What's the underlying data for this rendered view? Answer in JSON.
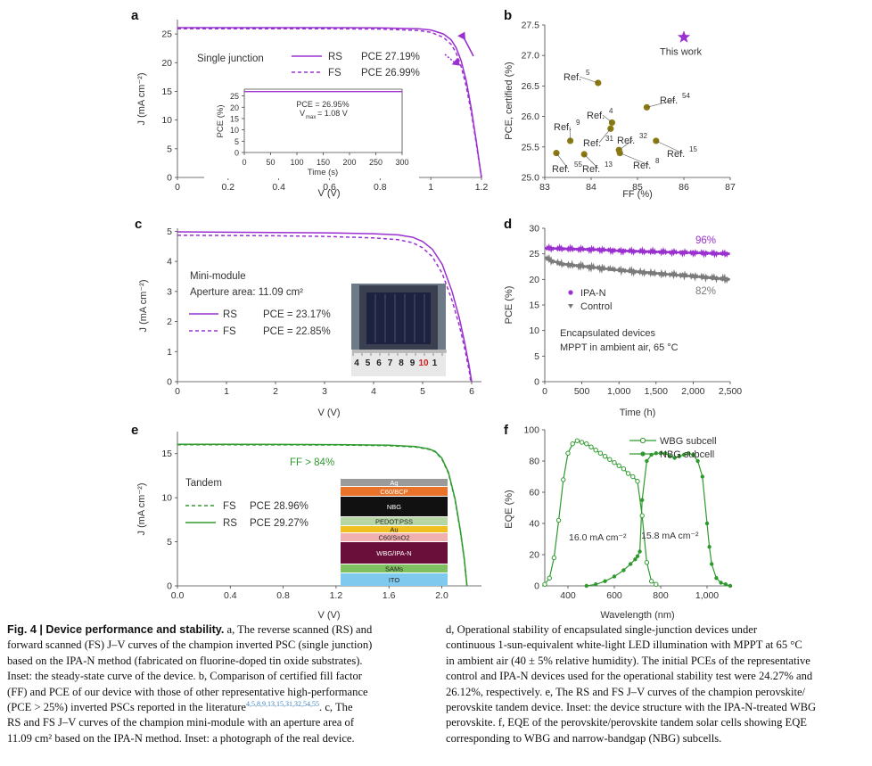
{
  "panels": {
    "a": {
      "letter": "a",
      "ylabel": "J (mA cm⁻²)",
      "xlabel": "V (V)",
      "title": "Single junction",
      "legend": [
        {
          "name": "RS",
          "pce": "PCE 27.19%"
        },
        {
          "name": "FS",
          "pce": "PCE 26.99%"
        }
      ],
      "inset": {
        "text1": "PCE = 26.95%",
        "text2": "V",
        "text2sub": "max",
        "text2b": " = 1.08 V",
        "xlabel": "Time (s)",
        "ylabel": "PCE (%)"
      }
    },
    "b": {
      "letter": "b",
      "xlabel": "FF (%)",
      "ylabel": "PCE, certified (%)"
    },
    "c": {
      "letter": "c",
      "ylabel": "J (mA cm⁻²)",
      "xlabel": "V (V)",
      "title": "Mini-module",
      "subtitle": "Aperture area: 11.09 cm²",
      "legend": [
        {
          "name": "RS",
          "pce": "PCE = 23.17%"
        },
        {
          "name": "FS",
          "pce": "PCE = 22.85%"
        }
      ],
      "ruler": [
        "4",
        "5",
        "6",
        "7",
        "8",
        "9",
        "10",
        "1"
      ]
    },
    "d": {
      "letter": "d",
      "ylabel": "PCE (%)",
      "xlabel": "Time (h)",
      "legend": [
        "IPA-N",
        "Control"
      ],
      "note1": "Encapsulated devices",
      "note2": "MPPT in ambient air, 65 °C",
      "label_top": "96%",
      "label_bottom": "82%"
    },
    "e": {
      "letter": "e",
      "ylabel": "J (mA cm⁻²)",
      "xlabel": "V (V)",
      "title": "Tandem",
      "ff": "FF > 84%",
      "legend": [
        {
          "name": "FS",
          "pce": "PCE 28.96%"
        },
        {
          "name": "RS",
          "pce": "PCE 29.27%"
        }
      ],
      "stack": [
        "Ag",
        "C60/BCP",
        "NBG",
        "PEDOT:PSS",
        "Au",
        "C60/SnO2",
        "WBG/IPA-N",
        "SAMs",
        "ITO"
      ]
    },
    "f": {
      "letter": "f",
      "ylabel": "EQE (%)",
      "xlabel": "Wavelength (nm)",
      "legend": [
        "WBG subcell",
        "NBG subcell"
      ],
      "label_left": "16.0 mA cm⁻²",
      "label_right": "15.8 mA cm⁻²"
    }
  },
  "chart_data": [
    {
      "panel": "a",
      "type": "line",
      "xlabel": "V (V)",
      "ylabel": "J (mA cm⁻²)",
      "xlim": [
        0,
        1.2
      ],
      "ylim": [
        0,
        27.5
      ],
      "xticks": [
        0,
        0.2,
        0.4,
        0.6,
        0.8,
        1.0,
        1.2
      ],
      "yticks": [
        0,
        5,
        10,
        15,
        20,
        25
      ],
      "series": [
        {
          "name": "RS",
          "x": [
            0,
            0.2,
            0.4,
            0.6,
            0.8,
            0.95,
            1.0,
            1.05,
            1.08,
            1.1,
            1.12,
            1.14,
            1.16,
            1.18,
            1.19,
            1.2
          ],
          "values": [
            26.1,
            26.1,
            26.1,
            26.1,
            26.05,
            25.9,
            25.7,
            25.0,
            24.0,
            22.6,
            20.3,
            16.8,
            12.0,
            6.2,
            3.0,
            0
          ]
        },
        {
          "name": "FS",
          "x": [
            0,
            0.2,
            0.4,
            0.6,
            0.8,
            0.95,
            1.0,
            1.05,
            1.08,
            1.1,
            1.12,
            1.14,
            1.16,
            1.18,
            1.19,
            1.2
          ],
          "values": [
            25.9,
            25.9,
            25.9,
            25.9,
            25.85,
            25.6,
            25.3,
            24.4,
            23.2,
            21.7,
            19.3,
            15.8,
            11.3,
            5.8,
            2.8,
            0
          ]
        }
      ],
      "inset": {
        "xlim": [
          0,
          300
        ],
        "ylim": [
          0,
          28
        ],
        "xticks": [
          0,
          50,
          100,
          150,
          200,
          250,
          300
        ],
        "yticks": [
          0,
          5,
          10,
          15,
          20,
          25
        ],
        "value": 26.95
      }
    },
    {
      "panel": "b",
      "type": "scatter",
      "xlabel": "FF (%)",
      "ylabel": "PCE, certified (%)",
      "xlim": [
        83,
        87
      ],
      "ylim": [
        25.0,
        27.5
      ],
      "xticks": [
        83,
        84,
        85,
        86,
        87
      ],
      "yticks": [
        25.0,
        25.5,
        26.0,
        26.5,
        27.0,
        27.5
      ],
      "points": [
        {
          "label": "This work",
          "x": 86.0,
          "y": 27.3,
          "marker": "star"
        },
        {
          "label": "Ref.",
          "sup": "5",
          "x": 84.15,
          "y": 26.55
        },
        {
          "label": "Ref.",
          "sup": "54",
          "x": 85.2,
          "y": 26.15
        },
        {
          "label": "Ref.",
          "sup": "4",
          "x": 84.45,
          "y": 25.9
        },
        {
          "label": "Ref.",
          "sup": "9",
          "x": 83.55,
          "y": 25.6
        },
        {
          "label": "Ref.",
          "sup": "31",
          "x": 84.42,
          "y": 25.8
        },
        {
          "label": "Ref.",
          "sup": "32",
          "x": 84.6,
          "y": 25.45
        },
        {
          "label": "Ref.",
          "sup": "15",
          "x": 85.4,
          "y": 25.6
        },
        {
          "label": "Ref.",
          "sup": "8",
          "x": 84.62,
          "y": 25.4
        },
        {
          "label": "Ref.",
          "sup": "55",
          "x": 83.25,
          "y": 25.4
        },
        {
          "label": "Ref.",
          "sup": "13",
          "x": 83.85,
          "y": 25.38
        }
      ]
    },
    {
      "panel": "c",
      "type": "line",
      "xlabel": "V (V)",
      "ylabel": "J (mA cm⁻²)",
      "xlim": [
        0,
        6.2
      ],
      "ylim": [
        0,
        5.1
      ],
      "xticks": [
        0,
        1,
        2,
        3,
        4,
        5,
        6
      ],
      "yticks": [
        0,
        1,
        2,
        3,
        4,
        5
      ],
      "series": [
        {
          "name": "RS",
          "x": [
            0,
            1,
            2,
            3,
            4,
            4.5,
            4.8,
            5.0,
            5.2,
            5.4,
            5.6,
            5.75,
            5.85,
            5.95,
            6.0
          ],
          "values": [
            4.98,
            4.97,
            4.96,
            4.95,
            4.92,
            4.88,
            4.8,
            4.66,
            4.4,
            3.9,
            3.0,
            2.1,
            1.35,
            0.5,
            0
          ]
        },
        {
          "name": "FS",
          "x": [
            0,
            1,
            2,
            3,
            4,
            4.5,
            4.8,
            5.0,
            5.2,
            5.4,
            5.6,
            5.75,
            5.85,
            5.95,
            5.98
          ],
          "values": [
            4.87,
            4.86,
            4.85,
            4.83,
            4.78,
            4.72,
            4.62,
            4.45,
            4.15,
            3.6,
            2.7,
            1.85,
            1.15,
            0.35,
            0
          ]
        }
      ]
    },
    {
      "panel": "d",
      "type": "line",
      "xlabel": "Time (h)",
      "ylabel": "PCE (%)",
      "xlim": [
        0,
        2500
      ],
      "ylim": [
        0,
        30
      ],
      "xticks": [
        0,
        500,
        1000,
        1500,
        2000,
        2500
      ],
      "yticks": [
        0,
        5,
        10,
        15,
        20,
        25,
        30
      ],
      "series": [
        {
          "name": "IPA-N",
          "x": [
            0,
            250,
            500,
            750,
            1000,
            1250,
            1500,
            1750,
            2000,
            2250,
            2500
          ],
          "values": [
            26.1,
            26.0,
            25.9,
            25.8,
            25.6,
            25.5,
            25.4,
            25.3,
            25.2,
            25.1,
            25.0
          ]
        },
        {
          "name": "Control",
          "x": [
            0,
            100,
            250,
            500,
            750,
            1000,
            1250,
            1500,
            1750,
            2000,
            2250,
            2500
          ],
          "values": [
            24.3,
            23.6,
            23.0,
            22.6,
            22.2,
            21.8,
            21.5,
            21.2,
            20.9,
            20.6,
            20.3,
            20.0
          ]
        }
      ]
    },
    {
      "panel": "e",
      "type": "line",
      "xlabel": "V (V)",
      "ylabel": "J (mA cm⁻²)",
      "xlim": [
        0,
        2.3
      ],
      "ylim": [
        0,
        17.5
      ],
      "xticks": [
        0,
        0.4,
        0.8,
        1.2,
        1.6,
        2.0
      ],
      "yticks": [
        0,
        5,
        10,
        15
      ],
      "series": [
        {
          "name": "FS",
          "x": [
            0,
            0.4,
            0.8,
            1.2,
            1.6,
            1.8,
            1.9,
            1.95,
            2.0,
            2.05,
            2.1,
            2.14,
            2.17,
            2.19
          ],
          "values": [
            16.0,
            16.0,
            15.99,
            15.98,
            15.9,
            15.75,
            15.5,
            15.2,
            14.4,
            12.8,
            9.8,
            6.2,
            3.0,
            0
          ]
        },
        {
          "name": "RS",
          "x": [
            0,
            0.4,
            0.8,
            1.2,
            1.6,
            1.8,
            1.9,
            1.95,
            2.0,
            2.05,
            2.1,
            2.14,
            2.17,
            2.19
          ],
          "values": [
            16.05,
            16.05,
            16.04,
            16.02,
            15.95,
            15.8,
            15.55,
            15.25,
            14.5,
            12.9,
            9.9,
            6.3,
            3.1,
            0
          ]
        }
      ]
    },
    {
      "panel": "f",
      "type": "line",
      "xlabel": "Wavelength (nm)",
      "ylabel": "EQE (%)",
      "xlim": [
        300,
        1100
      ],
      "ylim": [
        0,
        100
      ],
      "xticks": [
        400,
        600,
        800,
        1000
      ],
      "yticks": [
        0,
        20,
        40,
        60,
        80,
        100
      ],
      "series": [
        {
          "name": "WBG subcell",
          "x": [
            300,
            320,
            340,
            360,
            380,
            400,
            420,
            440,
            460,
            480,
            500,
            520,
            540,
            560,
            580,
            600,
            620,
            640,
            660,
            680,
            700,
            720,
            740,
            760,
            780
          ],
          "values": [
            1,
            5,
            18,
            42,
            68,
            85,
            91,
            93,
            92,
            91,
            89,
            87,
            85,
            83,
            81,
            79,
            77,
            75,
            72,
            70,
            67,
            45,
            15,
            3,
            1
          ]
        },
        {
          "name": "NBG subcell",
          "x": [
            480,
            520,
            560,
            600,
            640,
            670,
            690,
            700,
            710,
            720,
            740,
            760,
            780,
            800,
            820,
            840,
            860,
            880,
            900,
            920,
            940,
            960,
            980,
            1000,
            1010,
            1020,
            1040,
            1060,
            1080,
            1100
          ],
          "values": [
            0,
            1,
            3,
            6,
            10,
            14,
            17,
            19,
            22,
            55,
            80,
            84,
            85,
            85,
            85,
            83,
            82,
            83,
            84,
            85,
            84,
            80,
            70,
            40,
            25,
            14,
            5,
            2,
            1,
            0
          ]
        }
      ]
    }
  ],
  "caption": {
    "left": {
      "title": "Fig. 4 | Device performance and stability.",
      "lines": [
        "a, The reverse scanned (RS) and",
        "forward scanned (FS) J–V curves of the champion inverted PSC (single junction)",
        "based on the IPA-N method (fabricated on fluorine-doped tin oxide substrates).",
        "Inset: the steady-state curve of the device. b, Comparison of certified fill factor",
        "(FF) and PCE of our device with those of other representative high-performance",
        "(PCE > 25%) inverted PSCs reported in the literature",
        ". c, The",
        "RS and FS J–V curves of the champion mini-module with an aperture area of",
        "11.09 cm² based on the IPA-N method. Inset: a photograph of the real device."
      ],
      "refs": "4,5,8,9,13,15,31,32,54,55"
    },
    "right": {
      "lines": [
        "d, Operational stability of encapsulated single-junction devices under",
        "continuous 1-sun-equivalent white-light LED illumination with MPPT at 65 °C",
        "in ambient air (40 ± 5% relative humidity). The initial PCEs of the representative",
        "control and IPA-N devices used for the operational stability test were 24.27% and",
        "26.12%, respectively. e, The RS and FS J–V curves of the champion perovskite/",
        "perovskite tandem device. Inset: the device structure with the IPA-N-treated WBG",
        "perovskite. f, EQE of the perovskite/perovskite tandem solar cells showing EQE",
        "corresponding to WBG and narrow-bandgap (NBG) subcells."
      ]
    }
  }
}
